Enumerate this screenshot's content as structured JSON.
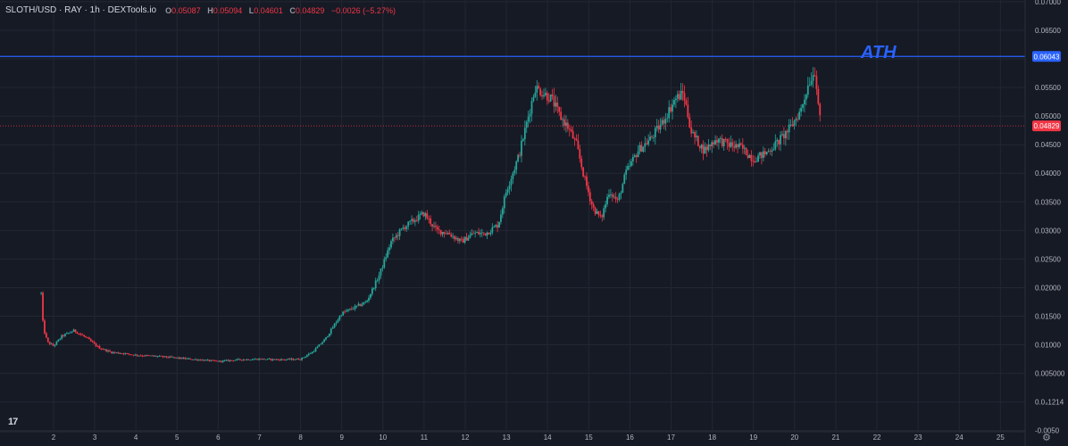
{
  "header": {
    "symbol": "SLOTH/USD · RAY · 1h · DEXTools.io",
    "open_label": "O",
    "open": "0.05087",
    "high_label": "H",
    "high": "0.05094",
    "low_label": "L",
    "low": "0.04601",
    "close_label": "C",
    "close": "0.04829",
    "change": "−0.0026 (−5.27%)"
  },
  "annotation": {
    "ath_label": "ATH"
  },
  "branding": {
    "logo_text": "17"
  },
  "colors": {
    "background": "#161a25",
    "grid": "#232733",
    "up": "#26a69a",
    "down": "#f23645",
    "ath_line": "#2962ff",
    "axis_text": "#b2b5be"
  },
  "chart_data": {
    "type": "candlestick",
    "title": "SLOTH/USD · RAY · 1h · DEXTools.io",
    "y_axis": {
      "position": "right",
      "ylim": [
        -0.0052,
        0.0703
      ],
      "tick_labels": [
        "0.07000",
        "0.06500",
        "0.06000",
        "0.05500",
        "0.05000",
        "0.04500",
        "0.04000",
        "0.03500",
        "0.03000",
        "0.02500",
        "0.02000",
        "0.01500",
        "0.01000",
        "0.005000",
        "0.0₄1214",
        "-0.0050"
      ],
      "tick_values": [
        0.07,
        0.065,
        0.06,
        0.055,
        0.05,
        0.045,
        0.04,
        0.035,
        0.03,
        0.025,
        0.02,
        0.015,
        0.01,
        0.005,
        0.0,
        -0.005
      ]
    },
    "x_axis": {
      "xlim": [
        0.7,
        25.6
      ],
      "tick_labels": [
        "2",
        "3",
        "4",
        "5",
        "6",
        "7",
        "8",
        "9",
        "10",
        "11",
        "12",
        "13",
        "14",
        "15",
        "16",
        "17",
        "18",
        "19",
        "20",
        "21",
        "22",
        "23",
        "24",
        "25"
      ],
      "tick_values": [
        2,
        3,
        4,
        5,
        6,
        7,
        8,
        9,
        10,
        11,
        12,
        13,
        14,
        15,
        16,
        17,
        18,
        19,
        20,
        21,
        22,
        23,
        24,
        25
      ]
    },
    "grid": true,
    "price_markers": [
      {
        "label": "0.06043",
        "value": 0.06043,
        "color": "#2962ff",
        "line": "solid"
      },
      {
        "label": "0.04829",
        "value": 0.04829,
        "color": "#f23645",
        "line": "dotted"
      }
    ],
    "path": [
      [
        1.7,
        0.019
      ],
      [
        1.75,
        0.013
      ],
      [
        1.85,
        0.0105
      ],
      [
        2.0,
        0.0098
      ],
      [
        2.2,
        0.0115
      ],
      [
        2.5,
        0.0125
      ],
      [
        2.8,
        0.0112
      ],
      [
        3.1,
        0.0095
      ],
      [
        3.4,
        0.0087
      ],
      [
        3.7,
        0.0085
      ],
      [
        4.0,
        0.0082
      ],
      [
        4.5,
        0.008
      ],
      [
        5.0,
        0.0077
      ],
      [
        5.5,
        0.0074
      ],
      [
        6.0,
        0.0071
      ],
      [
        6.5,
        0.0074
      ],
      [
        7.0,
        0.0075
      ],
      [
        7.5,
        0.0074
      ],
      [
        8.0,
        0.0075
      ],
      [
        8.3,
        0.0088
      ],
      [
        8.6,
        0.011
      ],
      [
        9.0,
        0.0155
      ],
      [
        9.3,
        0.0165
      ],
      [
        9.6,
        0.0175
      ],
      [
        9.9,
        0.022
      ],
      [
        10.2,
        0.028
      ],
      [
        10.5,
        0.0305
      ],
      [
        10.8,
        0.032
      ],
      [
        11.0,
        0.033
      ],
      [
        11.3,
        0.03
      ],
      [
        11.6,
        0.0295
      ],
      [
        11.9,
        0.028
      ],
      [
        12.2,
        0.0295
      ],
      [
        12.5,
        0.0295
      ],
      [
        12.8,
        0.031
      ],
      [
        13.0,
        0.037
      ],
      [
        13.3,
        0.043
      ],
      [
        13.5,
        0.049
      ],
      [
        13.7,
        0.055
      ],
      [
        13.9,
        0.054
      ],
      [
        14.1,
        0.053
      ],
      [
        14.3,
        0.05
      ],
      [
        14.5,
        0.048
      ],
      [
        14.7,
        0.045
      ],
      [
        14.9,
        0.039
      ],
      [
        15.1,
        0.034
      ],
      [
        15.3,
        0.032
      ],
      [
        15.5,
        0.037
      ],
      [
        15.7,
        0.035
      ],
      [
        15.9,
        0.04
      ],
      [
        16.2,
        0.044
      ],
      [
        16.5,
        0.046
      ],
      [
        16.8,
        0.049
      ],
      [
        17.1,
        0.053
      ],
      [
        17.3,
        0.054
      ],
      [
        17.5,
        0.047
      ],
      [
        17.8,
        0.044
      ],
      [
        18.1,
        0.046
      ],
      [
        18.4,
        0.045
      ],
      [
        18.7,
        0.0445
      ],
      [
        19.0,
        0.0425
      ],
      [
        19.3,
        0.0435
      ],
      [
        19.6,
        0.0455
      ],
      [
        19.9,
        0.048
      ],
      [
        20.15,
        0.051
      ],
      [
        20.35,
        0.056
      ],
      [
        20.5,
        0.058
      ],
      [
        20.58,
        0.052
      ],
      [
        20.63,
        0.0483
      ]
    ],
    "series": [
      {
        "values_source": "approximate OHLC hourly candles following path"
      }
    ]
  }
}
